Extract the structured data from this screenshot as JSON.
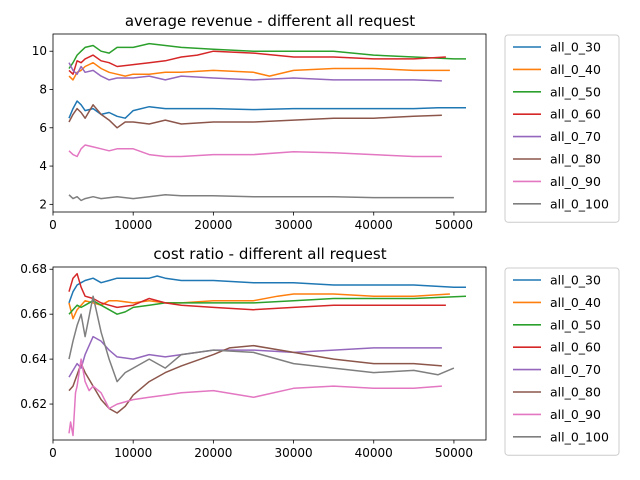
{
  "chart_data": [
    {
      "type": "line",
      "title": "average revenue - different all request",
      "xlabel": "",
      "ylabel": "",
      "xlim": [
        0,
        54000
      ],
      "ylim": [
        1.6,
        10.9
      ],
      "xticks": [
        0,
        10000,
        20000,
        30000,
        40000,
        50000
      ],
      "xtick_labels": [
        "0",
        "10000",
        "20000",
        "30000",
        "40000",
        "50000"
      ],
      "yticks": [
        2,
        4,
        6,
        8,
        10
      ],
      "ytick_labels": [
        "2",
        "4",
        "6",
        "8",
        "10"
      ],
      "grid": false,
      "legend_position": "outside-right",
      "series": [
        {
          "name": "all_0_30",
          "color": "#1f77b4",
          "x": [
            2000,
            2500,
            3000,
            3500,
            4000,
            5000,
            6000,
            7000,
            8000,
            9000,
            10000,
            12000,
            14000,
            16000,
            20000,
            25000,
            30000,
            35000,
            40000,
            45000,
            48000,
            51500
          ],
          "y": [
            6.5,
            7.0,
            7.4,
            7.2,
            6.9,
            7.0,
            6.7,
            6.8,
            6.6,
            6.5,
            6.9,
            7.1,
            7.0,
            7.0,
            7.0,
            6.95,
            7.0,
            7.0,
            7.0,
            7.0,
            7.05,
            7.05
          ]
        },
        {
          "name": "all_0_40",
          "color": "#ff7f0e",
          "x": [
            2000,
            2500,
            3000,
            3500,
            4000,
            5000,
            6000,
            7000,
            8000,
            9000,
            10000,
            12000,
            14000,
            16000,
            20000,
            25000,
            27000,
            30000,
            35000,
            40000,
            45000,
            49500
          ],
          "y": [
            8.7,
            8.5,
            8.9,
            9.0,
            9.2,
            9.4,
            9.1,
            8.9,
            8.8,
            8.7,
            8.8,
            8.8,
            8.9,
            8.9,
            9.0,
            8.9,
            8.7,
            9.0,
            9.1,
            9.1,
            9.0,
            9.0
          ]
        },
        {
          "name": "all_0_50",
          "color": "#2ca02c",
          "x": [
            2000,
            2500,
            3000,
            3500,
            4000,
            5000,
            6000,
            7000,
            8000,
            10000,
            12000,
            14000,
            16000,
            20000,
            25000,
            30000,
            35000,
            40000,
            45000,
            50000,
            51500
          ],
          "y": [
            9.1,
            9.4,
            9.8,
            10.0,
            10.2,
            10.3,
            10.0,
            9.9,
            10.2,
            10.2,
            10.4,
            10.3,
            10.2,
            10.1,
            10.0,
            10.0,
            10.0,
            9.8,
            9.7,
            9.6,
            9.6
          ]
        },
        {
          "name": "all_0_60",
          "color": "#d62728",
          "x": [
            2000,
            2500,
            3000,
            3500,
            4000,
            5000,
            6000,
            7000,
            8000,
            10000,
            12000,
            14000,
            16000,
            18000,
            20000,
            25000,
            30000,
            35000,
            40000,
            45000,
            49000
          ],
          "y": [
            9.0,
            8.8,
            9.5,
            9.4,
            9.6,
            9.8,
            9.5,
            9.4,
            9.2,
            9.3,
            9.4,
            9.5,
            9.7,
            9.8,
            10.0,
            9.9,
            9.7,
            9.7,
            9.6,
            9.6,
            9.7
          ]
        },
        {
          "name": "all_0_70",
          "color": "#9467bd",
          "x": [
            2000,
            2500,
            3000,
            3500,
            4000,
            5000,
            6000,
            7000,
            8000,
            10000,
            12000,
            14000,
            16000,
            20000,
            25000,
            30000,
            35000,
            40000,
            45000,
            48500
          ],
          "y": [
            9.4,
            9.0,
            8.8,
            9.2,
            8.9,
            9.0,
            8.7,
            8.5,
            8.6,
            8.6,
            8.7,
            8.5,
            8.7,
            8.6,
            8.5,
            8.6,
            8.5,
            8.5,
            8.5,
            8.45
          ]
        },
        {
          "name": "all_0_80",
          "color": "#8c564b",
          "x": [
            2000,
            2500,
            3000,
            3500,
            4000,
            5000,
            6000,
            7000,
            8000,
            9000,
            10000,
            12000,
            14000,
            16000,
            20000,
            25000,
            30000,
            35000,
            40000,
            45000,
            48500
          ],
          "y": [
            6.3,
            6.7,
            7.0,
            6.8,
            6.5,
            7.2,
            6.7,
            6.4,
            6.0,
            6.3,
            6.3,
            6.2,
            6.4,
            6.2,
            6.3,
            6.3,
            6.4,
            6.5,
            6.5,
            6.6,
            6.65
          ]
        },
        {
          "name": "all_0_90",
          "color": "#e377c2",
          "x": [
            2000,
            2500,
            3000,
            3500,
            4000,
            5000,
            6000,
            7000,
            8000,
            10000,
            12000,
            14000,
            16000,
            20000,
            25000,
            30000,
            35000,
            40000,
            45000,
            48500
          ],
          "y": [
            4.8,
            4.6,
            4.5,
            4.9,
            5.1,
            5.0,
            4.9,
            4.8,
            4.9,
            4.9,
            4.6,
            4.5,
            4.5,
            4.6,
            4.6,
            4.75,
            4.7,
            4.6,
            4.5,
            4.5
          ]
        },
        {
          "name": "all_0_100",
          "color": "#7f7f7f",
          "x": [
            2000,
            2500,
            3000,
            3500,
            4000,
            5000,
            6000,
            8000,
            10000,
            12000,
            14000,
            16000,
            20000,
            25000,
            30000,
            35000,
            40000,
            45000,
            50000
          ],
          "y": [
            2.5,
            2.3,
            2.4,
            2.2,
            2.3,
            2.4,
            2.3,
            2.4,
            2.3,
            2.4,
            2.5,
            2.45,
            2.45,
            2.4,
            2.4,
            2.4,
            2.35,
            2.35,
            2.35
          ]
        }
      ]
    },
    {
      "type": "line",
      "title": "cost ratio - different all request",
      "xlabel": "",
      "ylabel": "",
      "xlim": [
        0,
        54000
      ],
      "ylim": [
        0.604,
        0.681
      ],
      "xticks": [
        0,
        10000,
        20000,
        30000,
        40000,
        50000
      ],
      "xtick_labels": [
        "0",
        "10000",
        "20000",
        "30000",
        "40000",
        "50000"
      ],
      "yticks": [
        0.62,
        0.64,
        0.66,
        0.68
      ],
      "ytick_labels": [
        "0.62",
        "0.64",
        "0.66",
        "0.68"
      ],
      "grid": false,
      "legend_position": "outside-right",
      "series": [
        {
          "name": "all_0_30",
          "color": "#1f77b4",
          "x": [
            2000,
            2500,
            3000,
            3500,
            4000,
            5000,
            6000,
            7000,
            8000,
            10000,
            12000,
            13000,
            14000,
            16000,
            20000,
            25000,
            30000,
            35000,
            40000,
            45000,
            50000,
            51500
          ],
          "y": [
            0.665,
            0.67,
            0.673,
            0.674,
            0.675,
            0.676,
            0.674,
            0.675,
            0.676,
            0.676,
            0.676,
            0.677,
            0.676,
            0.675,
            0.675,
            0.674,
            0.674,
            0.673,
            0.673,
            0.673,
            0.672,
            0.672
          ]
        },
        {
          "name": "all_0_40",
          "color": "#ff7f0e",
          "x": [
            2000,
            2500,
            3000,
            3500,
            4000,
            5000,
            6000,
            7000,
            8000,
            10000,
            12000,
            14000,
            16000,
            20000,
            25000,
            28000,
            30000,
            35000,
            40000,
            45000,
            49500
          ],
          "y": [
            0.665,
            0.658,
            0.662,
            0.664,
            0.666,
            0.665,
            0.664,
            0.666,
            0.666,
            0.665,
            0.666,
            0.665,
            0.665,
            0.666,
            0.666,
            0.668,
            0.669,
            0.669,
            0.668,
            0.668,
            0.669
          ]
        },
        {
          "name": "all_0_50",
          "color": "#2ca02c",
          "x": [
            2000,
            2500,
            3000,
            3500,
            4000,
            5000,
            6000,
            7000,
            8000,
            9000,
            10000,
            12000,
            14000,
            16000,
            20000,
            25000,
            30000,
            35000,
            40000,
            45000,
            51500
          ],
          "y": [
            0.66,
            0.662,
            0.664,
            0.663,
            0.664,
            0.666,
            0.664,
            0.662,
            0.66,
            0.661,
            0.663,
            0.664,
            0.665,
            0.665,
            0.665,
            0.665,
            0.666,
            0.667,
            0.667,
            0.667,
            0.668
          ]
        },
        {
          "name": "all_0_60",
          "color": "#d62728",
          "x": [
            2000,
            2500,
            3000,
            3500,
            4000,
            5000,
            6000,
            7000,
            8000,
            10000,
            12000,
            14000,
            16000,
            20000,
            25000,
            30000,
            35000,
            40000,
            45000,
            49000
          ],
          "y": [
            0.67,
            0.676,
            0.678,
            0.672,
            0.668,
            0.667,
            0.665,
            0.664,
            0.663,
            0.664,
            0.667,
            0.665,
            0.664,
            0.663,
            0.662,
            0.663,
            0.664,
            0.664,
            0.664,
            0.664
          ]
        },
        {
          "name": "all_0_70",
          "color": "#9467bd",
          "x": [
            2000,
            2500,
            3000,
            3500,
            4000,
            5000,
            6000,
            7000,
            8000,
            10000,
            12000,
            14000,
            16000,
            20000,
            25000,
            30000,
            35000,
            40000,
            45000,
            48500
          ],
          "y": [
            0.632,
            0.635,
            0.638,
            0.636,
            0.642,
            0.65,
            0.648,
            0.644,
            0.641,
            0.64,
            0.642,
            0.641,
            0.642,
            0.644,
            0.644,
            0.643,
            0.644,
            0.645,
            0.645,
            0.645
          ]
        },
        {
          "name": "all_0_80",
          "color": "#8c564b",
          "x": [
            2000,
            2500,
            3000,
            3500,
            4000,
            5000,
            6000,
            7000,
            8000,
            9000,
            10000,
            12000,
            14000,
            16000,
            20000,
            22000,
            25000,
            30000,
            35000,
            40000,
            45000,
            48500
          ],
          "y": [
            0.626,
            0.628,
            0.633,
            0.638,
            0.634,
            0.628,
            0.622,
            0.618,
            0.616,
            0.619,
            0.624,
            0.63,
            0.634,
            0.637,
            0.642,
            0.645,
            0.646,
            0.643,
            0.64,
            0.638,
            0.638,
            0.637
          ]
        },
        {
          "name": "all_0_90",
          "color": "#e377c2",
          "x": [
            2000,
            2200,
            2500,
            2800,
            3000,
            3500,
            4000,
            4500,
            5000,
            6000,
            7000,
            8000,
            10000,
            12000,
            14000,
            16000,
            20000,
            25000,
            30000,
            35000,
            40000,
            45000,
            48500
          ],
          "y": [
            0.607,
            0.612,
            0.606,
            0.625,
            0.628,
            0.64,
            0.63,
            0.626,
            0.628,
            0.625,
            0.618,
            0.62,
            0.622,
            0.623,
            0.624,
            0.625,
            0.626,
            0.623,
            0.627,
            0.628,
            0.627,
            0.627,
            0.628
          ]
        },
        {
          "name": "all_0_100",
          "color": "#7f7f7f",
          "x": [
            2000,
            2500,
            3000,
            3500,
            4000,
            5000,
            6000,
            7000,
            8000,
            9000,
            10000,
            12000,
            14000,
            16000,
            20000,
            25000,
            30000,
            35000,
            40000,
            45000,
            48000,
            50000
          ],
          "y": [
            0.64,
            0.648,
            0.655,
            0.66,
            0.65,
            0.668,
            0.652,
            0.64,
            0.63,
            0.634,
            0.636,
            0.64,
            0.636,
            0.642,
            0.644,
            0.643,
            0.638,
            0.636,
            0.634,
            0.635,
            0.633,
            0.636
          ]
        }
      ]
    }
  ]
}
